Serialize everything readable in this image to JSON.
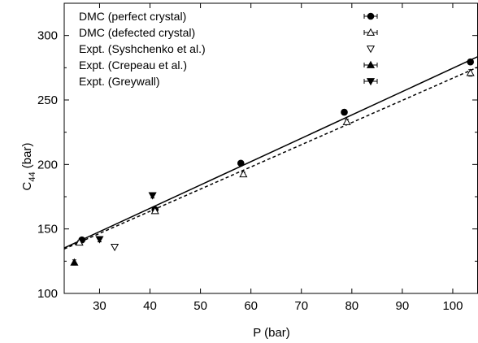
{
  "chart_data": {
    "type": "scatter",
    "xlabel": "P (bar)",
    "ylabel_main": "C",
    "ylabel_sub": "44",
    "ylabel_unit": " (bar)",
    "xlim": [
      23,
      105
    ],
    "ylim": [
      100,
      325
    ],
    "xticks": [
      30,
      40,
      50,
      60,
      70,
      80,
      90,
      100
    ],
    "yticks": [
      100,
      150,
      200,
      250,
      300
    ],
    "legend_position": "top-left",
    "series": [
      {
        "name": "DMC (perfect crystal)",
        "marker": "circle-filled",
        "x": [
          26.5,
          41.0,
          58.0,
          78.5,
          103.5
        ],
        "y": [
          141.5,
          165.0,
          201.0,
          240.5,
          279.5
        ],
        "yerr": [
          1.5,
          1.5,
          1.5,
          2.0,
          2.0
        ]
      },
      {
        "name": "DMC (defected crystal)",
        "marker": "triangle-up-open",
        "x": [
          26.0,
          41.0,
          58.5,
          79.0,
          103.5
        ],
        "y": [
          139.5,
          164.0,
          192.5,
          233.0,
          271.0
        ],
        "yerr": [
          1.5,
          1.5,
          1.5,
          2.0,
          2.5
        ]
      },
      {
        "name": "Expt. (Syshchenko et al.)",
        "marker": "triangle-down-open",
        "x": [
          33.0
        ],
        "y": [
          136.0
        ],
        "yerr": [
          0
        ]
      },
      {
        "name": "Expt. (Crepeau et al.)",
        "marker": "triangle-up-filled",
        "x": [
          25.0
        ],
        "y": [
          124.0
        ],
        "yerr": [
          2.0
        ]
      },
      {
        "name": "Expt. (Greywall)",
        "marker": "triangle-down-filled",
        "x": [
          30.0,
          40.5
        ],
        "y": [
          142.0,
          176.0
        ],
        "yerr": [
          2.0,
          2.0
        ]
      }
    ],
    "fits": [
      {
        "style": "solid",
        "slope": 1.81,
        "intercept": 93.6
      },
      {
        "style": "dashed",
        "slope": 1.72,
        "intercept": 94.9
      }
    ]
  }
}
